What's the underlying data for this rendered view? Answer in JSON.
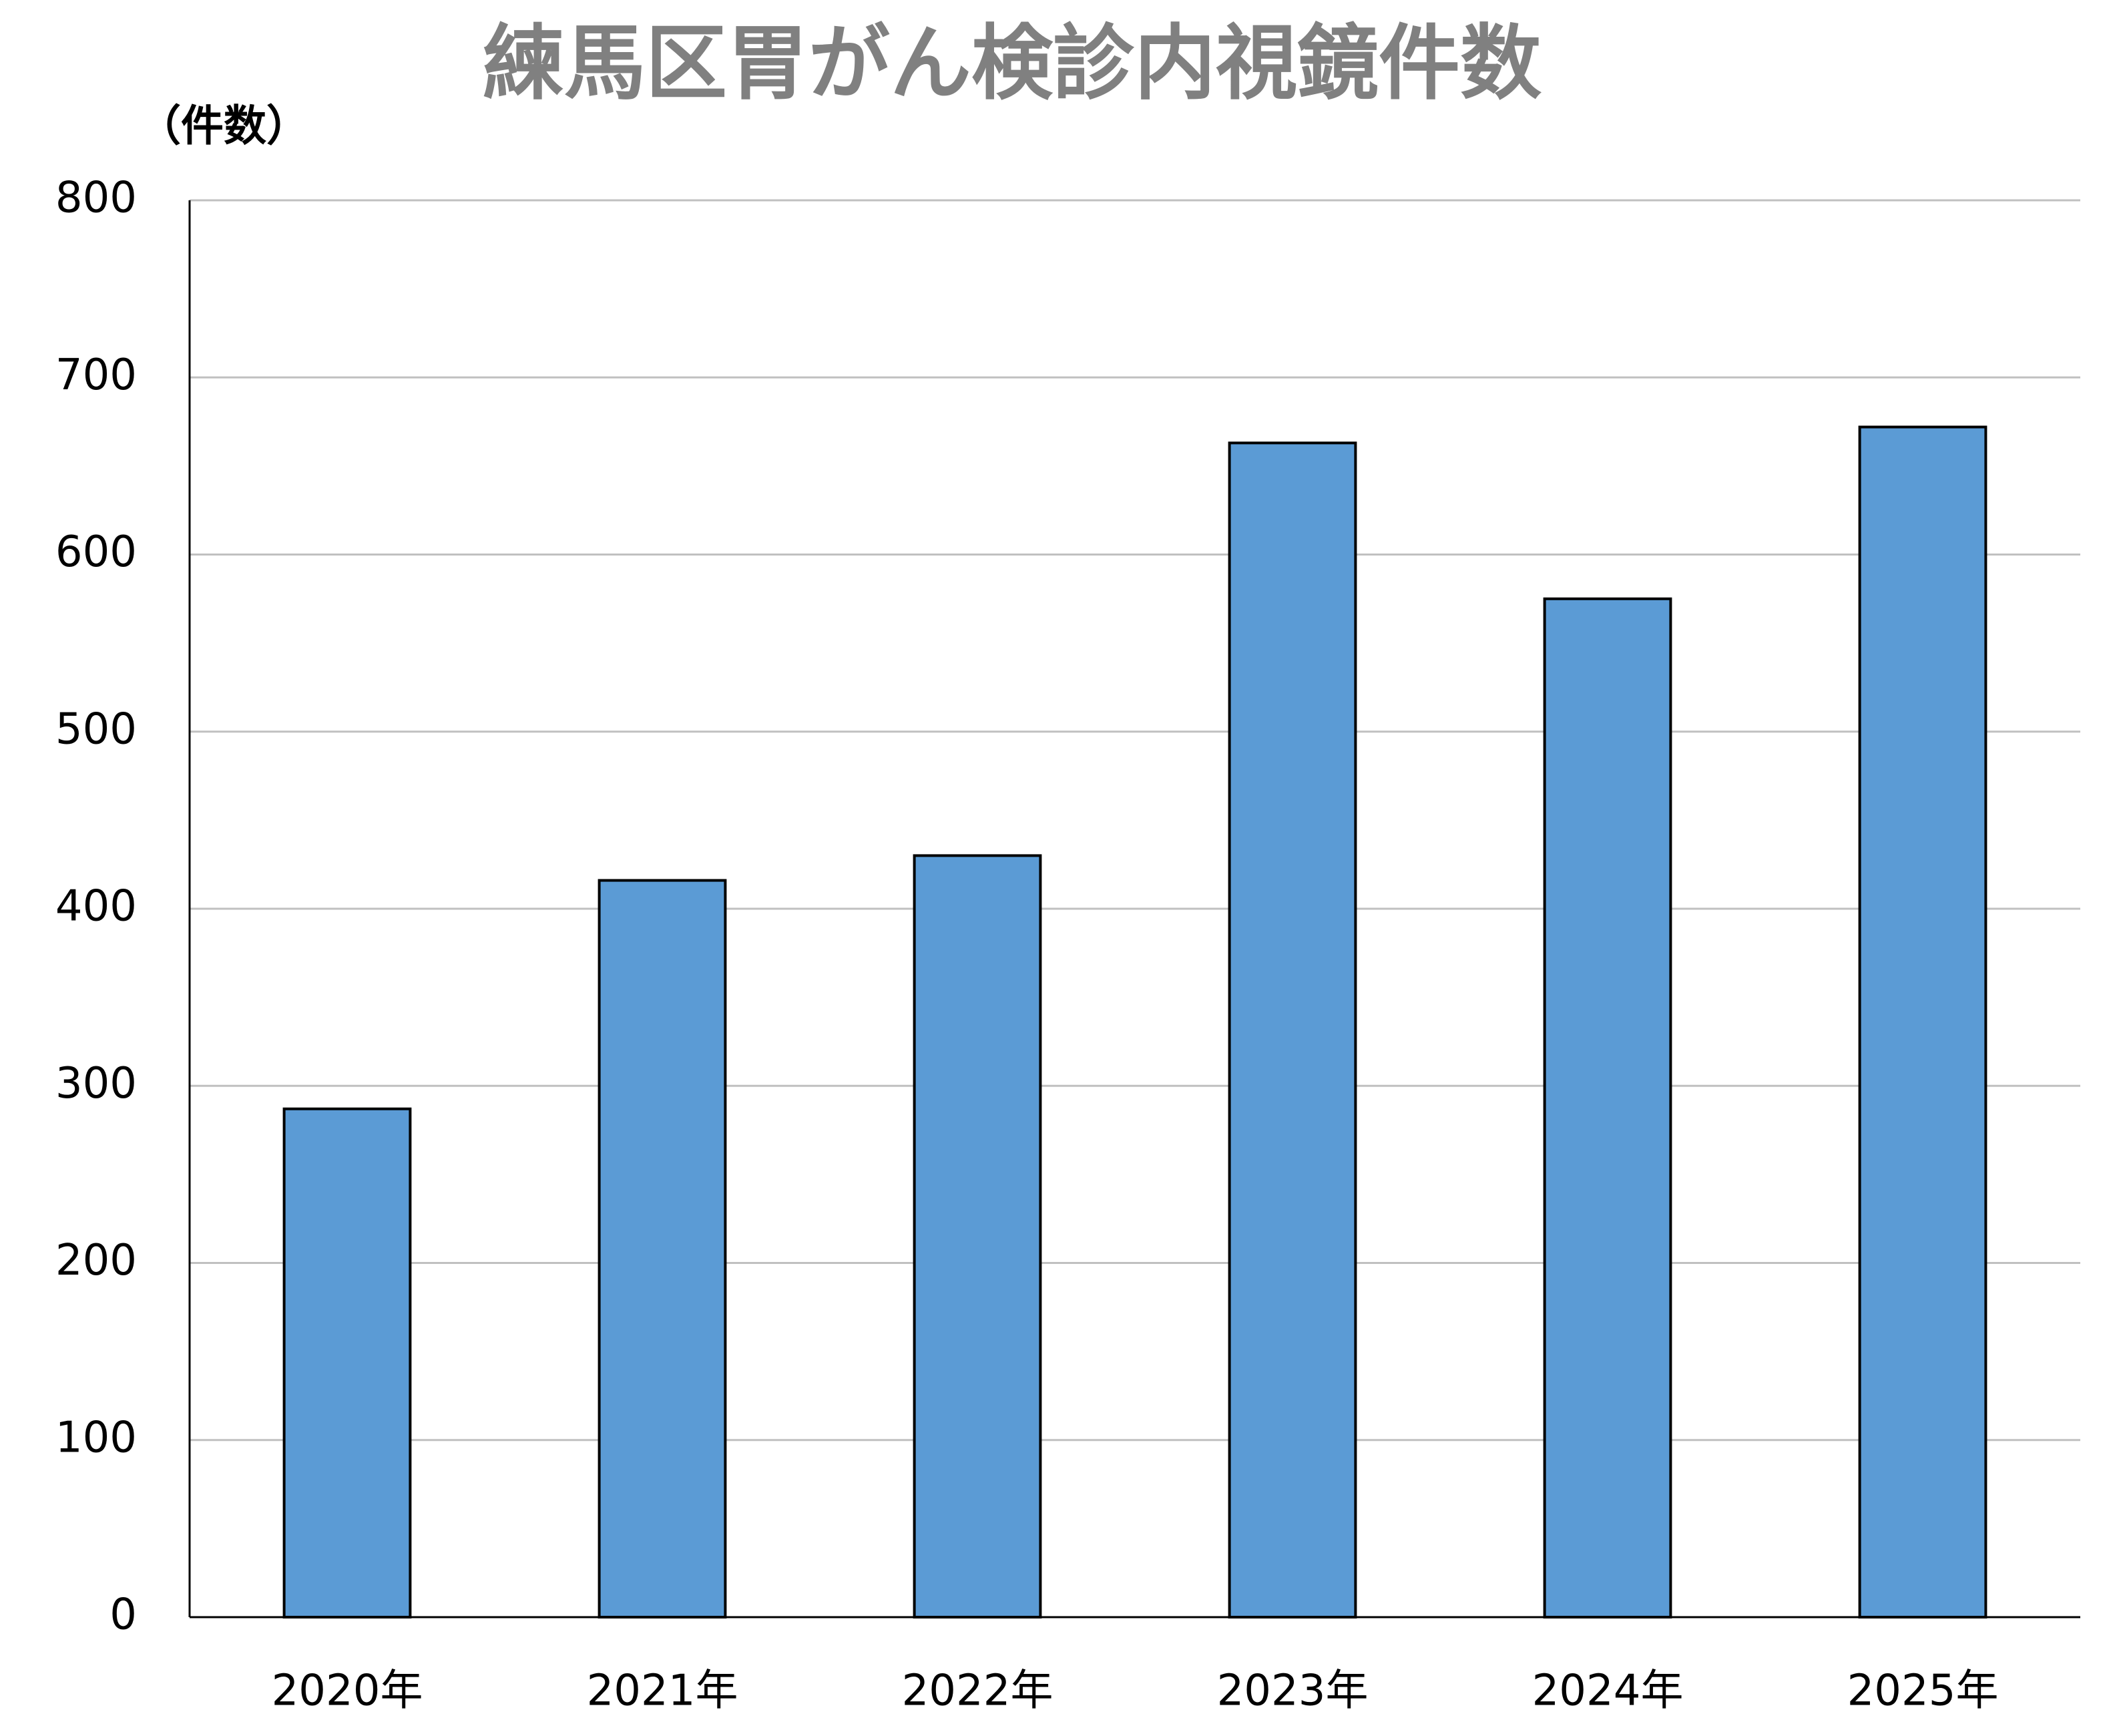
{
  "chart_data": {
    "type": "bar",
    "title": "練馬区胃がん検診内視鏡件数",
    "y_label": "（件数）",
    "categories": [
      "2020年",
      "2021年",
      "2022年",
      "2023年",
      "2024年",
      "2025年"
    ],
    "values": [
      287,
      416,
      430,
      663,
      575,
      672
    ],
    "color": "#5b9bd5",
    "ylim": [
      0,
      800
    ],
    "yticks": [
      0,
      100,
      200,
      300,
      400,
      500,
      600,
      700,
      800
    ],
    "grid": true
  }
}
